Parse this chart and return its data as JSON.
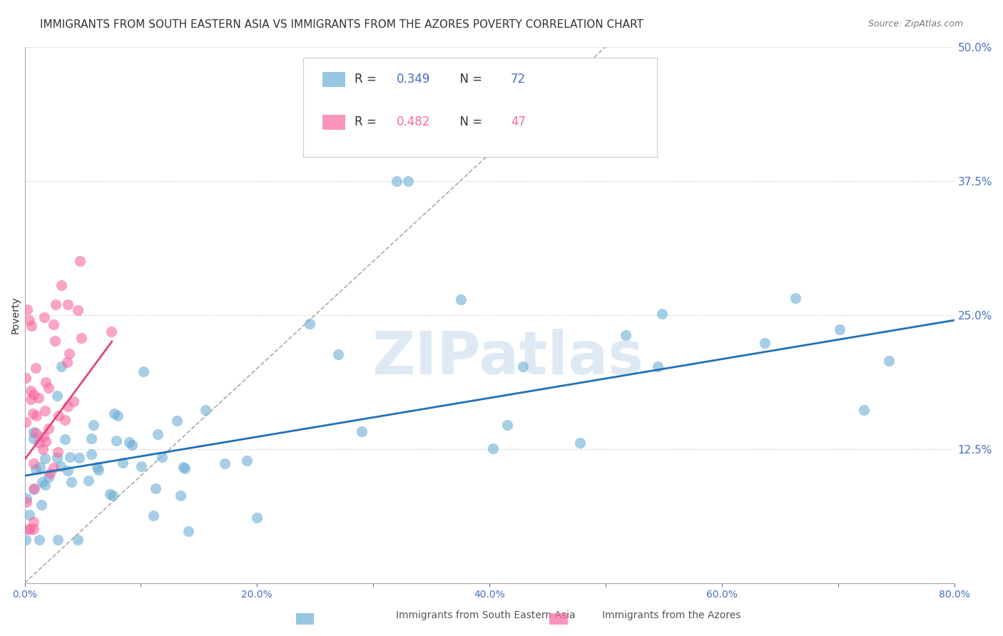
{
  "title": "IMMIGRANTS FROM SOUTH EASTERN ASIA VS IMMIGRANTS FROM THE AZORES POVERTY CORRELATION CHART",
  "source": "Source: ZipAtlas.com",
  "ylabel": "Poverty",
  "watermark": "ZIPatlas",
  "xlim": [
    0.0,
    0.8
  ],
  "ylim": [
    0.0,
    0.5
  ],
  "ytick_positions": [
    0.0,
    0.125,
    0.25,
    0.375,
    0.5
  ],
  "ytick_labels_right": [
    "",
    "12.5%",
    "25.0%",
    "37.5%",
    "50.0%"
  ],
  "xtick_positions": [
    0.0,
    0.1,
    0.2,
    0.3,
    0.4,
    0.5,
    0.6,
    0.7,
    0.8
  ],
  "xtick_labels": [
    "0.0%",
    "",
    "20.0%",
    "",
    "40.0%",
    "",
    "60.0%",
    "",
    "80.0%"
  ],
  "blue_R": 0.349,
  "blue_N": 72,
  "pink_R": 0.482,
  "pink_N": 47,
  "blue_color": "#6baed6",
  "pink_color": "#f768a1",
  "blue_label": "Immigrants from South Eastern Asia",
  "pink_label": "Immigrants from the Azores",
  "tick_color": "#4472c4",
  "blue_trend_x": [
    0.0,
    0.8
  ],
  "blue_trend_y": [
    0.1,
    0.245
  ],
  "pink_trend_x": [
    0.0,
    0.075
  ],
  "pink_trend_y": [
    0.115,
    0.225
  ],
  "dashed_line_x": [
    0.0,
    0.5
  ],
  "dashed_line_y": [
    0.0,
    0.5
  ],
  "background_color": "#ffffff",
  "grid_color": "#dddddd",
  "title_fontsize": 11,
  "source_fontsize": 9,
  "label_fontsize": 10,
  "tick_fontsize": 10,
  "watermark_color": "#d0e0f0",
  "watermark_fontsize": 60
}
